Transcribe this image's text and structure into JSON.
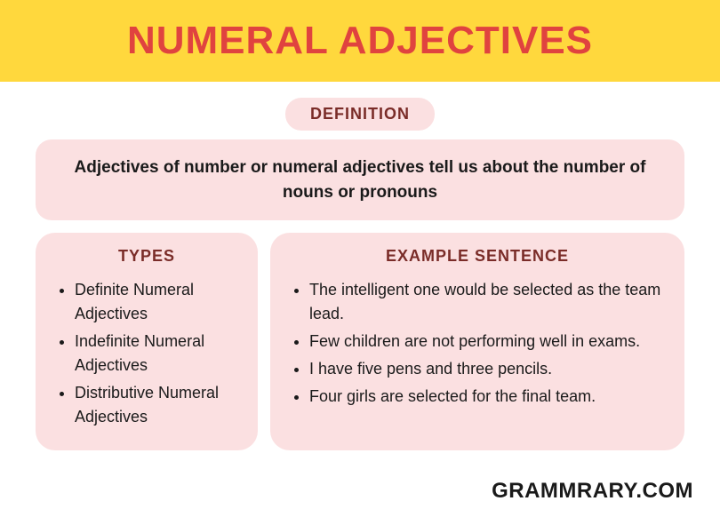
{
  "colors": {
    "banner_bg": "#ffd83d",
    "title": "#e0433f",
    "card_bg": "#fbe0e1",
    "heading": "#7a2c28",
    "body_text": "#1a1a1a"
  },
  "banner": {
    "title": "Numeral Adjectives"
  },
  "definition": {
    "label": "Definition",
    "text": "Adjectives of number or numeral adjectives tell us about the number of nouns or pronouns"
  },
  "types": {
    "heading": "Types",
    "items": [
      "Definite Numeral Adjectives",
      "Indefinite Numeral Adjectives",
      "Distributive Numeral Adjectives"
    ]
  },
  "examples": {
    "heading": "Example Sentence",
    "items": [
      "The intelligent one would be selected as the team lead.",
      "Few children are not performing well in exams.",
      "I have five pens and three pencils.",
      "Four girls are selected for the final team."
    ]
  },
  "footer": {
    "site": "Grammrary.com"
  }
}
